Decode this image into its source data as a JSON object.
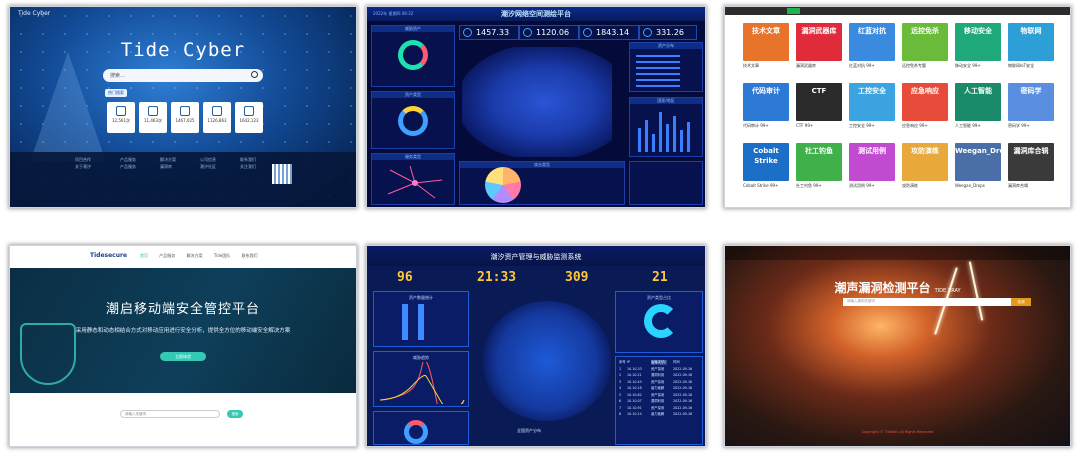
{
  "panel1": {
    "logo": "Tide Cyber",
    "title": "Tide Cyber",
    "search_placeholder": "搜索...",
    "tag": "热门搜索",
    "stats": [
      "12,561次",
      "11,463次",
      "1467,025",
      "1126,863",
      "1642,123"
    ],
    "footer_cols": [
      [
        "项目合作",
        "产品服务",
        "解决方案",
        "公司信息",
        "联系我们"
      ],
      [
        "关于潮汐",
        "产品服务",
        "漏洞库",
        "潮汐社区",
        "关注我们"
      ]
    ]
  },
  "panel2": {
    "title": "潮汐网络空间测绘平台",
    "time": "2022年 星期四 08:32",
    "stats": [
      "1457.33",
      "1120.06",
      "1843.14",
      "331.26"
    ],
    "boxes": [
      "威胁资产",
      "资产类型",
      "资产分布",
      "国家/地区",
      "服务类型",
      "攻击类型"
    ]
  },
  "panel3": {
    "cards": [
      {
        "title": "技术文章",
        "name": "技术文章",
        "color": "#e8742c"
      },
      {
        "title": "漏洞武器库",
        "name": "漏洞武器库",
        "color": "#e02b3b"
      },
      {
        "title": "红蓝对抗",
        "name": "红蓝对抗 99+",
        "color": "#3a8be0"
      },
      {
        "title": "远控免杀",
        "name": "远控免杀专题",
        "color": "#6bbb3a"
      },
      {
        "title": "移动安全",
        "name": "移动安全 99+",
        "color": "#1fa87a"
      },
      {
        "title": "物联网",
        "name": "物联网IoT安全",
        "color": "#2c9fd6"
      },
      {
        "title": "代码审计",
        "name": "代码审计 99+",
        "color": "#2d7ad6"
      },
      {
        "title": "CTF",
        "name": "CTF 99+",
        "color": "#2b2b2b"
      },
      {
        "title": "工控安全",
        "name": "工控安全 99+",
        "color": "#3aa3e0"
      },
      {
        "title": "应急响应",
        "name": "应急响应 99+",
        "color": "#e84b3a"
      },
      {
        "title": "人工智能",
        "name": "人工智能 99+",
        "color": "#1a8a6a"
      },
      {
        "title": "密码学",
        "name": "密码学 99+",
        "color": "#5a8fe0"
      },
      {
        "title": "Cobalt Strike",
        "name": "Cobalt Strike 99+",
        "color": "#1c6fc8"
      },
      {
        "title": "社工钓鱼",
        "name": "社工钓鱼 99+",
        "color": "#3fb04a"
      },
      {
        "title": "测试用例",
        "name": "测试用例 99+",
        "color": "#c04ad0"
      },
      {
        "title": "攻防演练",
        "name": "攻防演练",
        "color": "#e8a83a"
      },
      {
        "title": "Weegan_Drops",
        "name": "Weegan_Drops",
        "color": "#4a6fa8"
      },
      {
        "title": "漏洞库合辑",
        "name": "漏洞库合辑",
        "color": "#3a3a3a"
      }
    ]
  },
  "panel4": {
    "logo": "Tidesecure",
    "nav": [
      "首页",
      "产品服务",
      "解决方案",
      "Tide团队",
      "联系我们"
    ],
    "title": "潮启移动端安全管控平台",
    "subtitle": "采用静态和动态相结合方式对移动应用进行安全分析，提供全方位的移动端安全解决方案",
    "button": "立即体验",
    "search_placeholder": "请输入关键词",
    "search_button": "搜索"
  },
  "panel5": {
    "title": "潮汐资产管理与威胁监测系统",
    "nums": [
      "96",
      "21:33",
      "309",
      "21"
    ],
    "boxes": [
      "资产数量统计",
      "威胁趋势",
      "资产类型占比",
      "最新告警"
    ],
    "map_label": "全国资产分布",
    "table": [
      [
        "序号",
        "IP",
        "告警类型",
        "时间"
      ],
      [
        "1",
        "10.10.33",
        "资产探测",
        "2022-09-16"
      ],
      [
        "2",
        "10.10.21",
        "漏洞利用",
        "2022-09-16"
      ],
      [
        "3",
        "10.10.45",
        "资产探测",
        "2022-09-16"
      ],
      [
        "4",
        "10.10.18",
        "暴力破解",
        "2022-09-16"
      ],
      [
        "5",
        "10.10.62",
        "资产探测",
        "2022-09-16"
      ],
      [
        "6",
        "10.10.07",
        "漏洞利用",
        "2022-09-16"
      ],
      [
        "7",
        "10.10.91",
        "资产探测",
        "2022-09-16"
      ],
      [
        "8",
        "10.10.14",
        "暴力破解",
        "2022-09-16"
      ]
    ]
  },
  "panel6": {
    "title": "潮声漏洞检测平台",
    "subtitle": "TIDE XRAY",
    "search_placeholder": "请输入漏洞关键词",
    "search_button": "检测",
    "footer": "Copyright © TideSec All Rights Reserved"
  }
}
